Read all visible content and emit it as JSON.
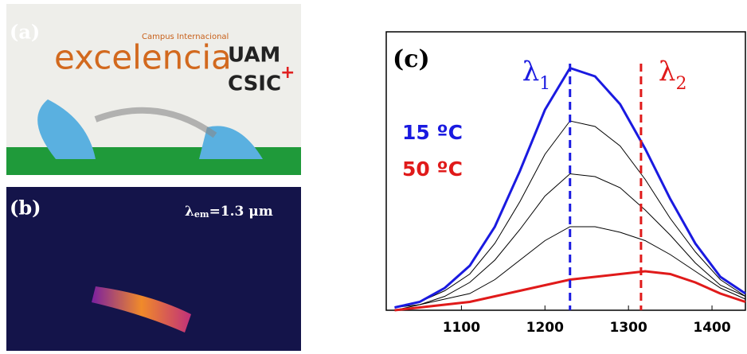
{
  "panels": {
    "a": {
      "label": "(a)",
      "campus": "Campus Internacional",
      "word": "excelencia",
      "uam": "UAM",
      "csic": "CSIC",
      "plus": "+"
    },
    "b": {
      "label": "(b)",
      "lambda": "λ",
      "sub": "em",
      "rest": "=1.3 μm"
    }
  },
  "chart_data": {
    "type": "line",
    "panel_label": "(c)",
    "x": [
      1020,
      1050,
      1080,
      1110,
      1140,
      1170,
      1200,
      1230,
      1260,
      1290,
      1320,
      1350,
      1380,
      1410,
      1440
    ],
    "series": [
      {
        "name": "15 ºC",
        "color": "#1a1ae0",
        "values": [
          0.01,
          0.03,
          0.08,
          0.16,
          0.3,
          0.5,
          0.72,
          0.87,
          0.84,
          0.74,
          0.58,
          0.4,
          0.24,
          0.12,
          0.06
        ]
      },
      {
        "color": "#000000",
        "values": [
          0.01,
          0.03,
          0.07,
          0.13,
          0.24,
          0.39,
          0.56,
          0.68,
          0.66,
          0.59,
          0.47,
          0.33,
          0.21,
          0.11,
          0.05
        ]
      },
      {
        "color": "#000000",
        "values": [
          0.01,
          0.02,
          0.05,
          0.1,
          0.18,
          0.29,
          0.41,
          0.49,
          0.48,
          0.44,
          0.36,
          0.27,
          0.17,
          0.09,
          0.05
        ]
      },
      {
        "color": "#000000",
        "values": [
          0.0,
          0.02,
          0.04,
          0.06,
          0.11,
          0.18,
          0.25,
          0.3,
          0.3,
          0.28,
          0.25,
          0.2,
          0.14,
          0.08,
          0.04
        ]
      },
      {
        "name": "50 ºC",
        "color": "#e01a1a",
        "values": [
          0.0,
          0.01,
          0.02,
          0.03,
          0.05,
          0.07,
          0.09,
          0.11,
          0.12,
          0.13,
          0.14,
          0.13,
          0.1,
          0.06,
          0.03
        ]
      }
    ],
    "xlim": [
      1010,
      1440
    ],
    "ylim": [
      0,
      1
    ],
    "xticks": [
      1100,
      1200,
      1300,
      1400
    ],
    "vlines": [
      {
        "x": 1230,
        "color": "#1a1ae0",
        "label": "λ",
        "sub": "1"
      },
      {
        "x": 1315,
        "color": "#e01a1a",
        "label": "λ",
        "sub": "2"
      }
    ]
  }
}
